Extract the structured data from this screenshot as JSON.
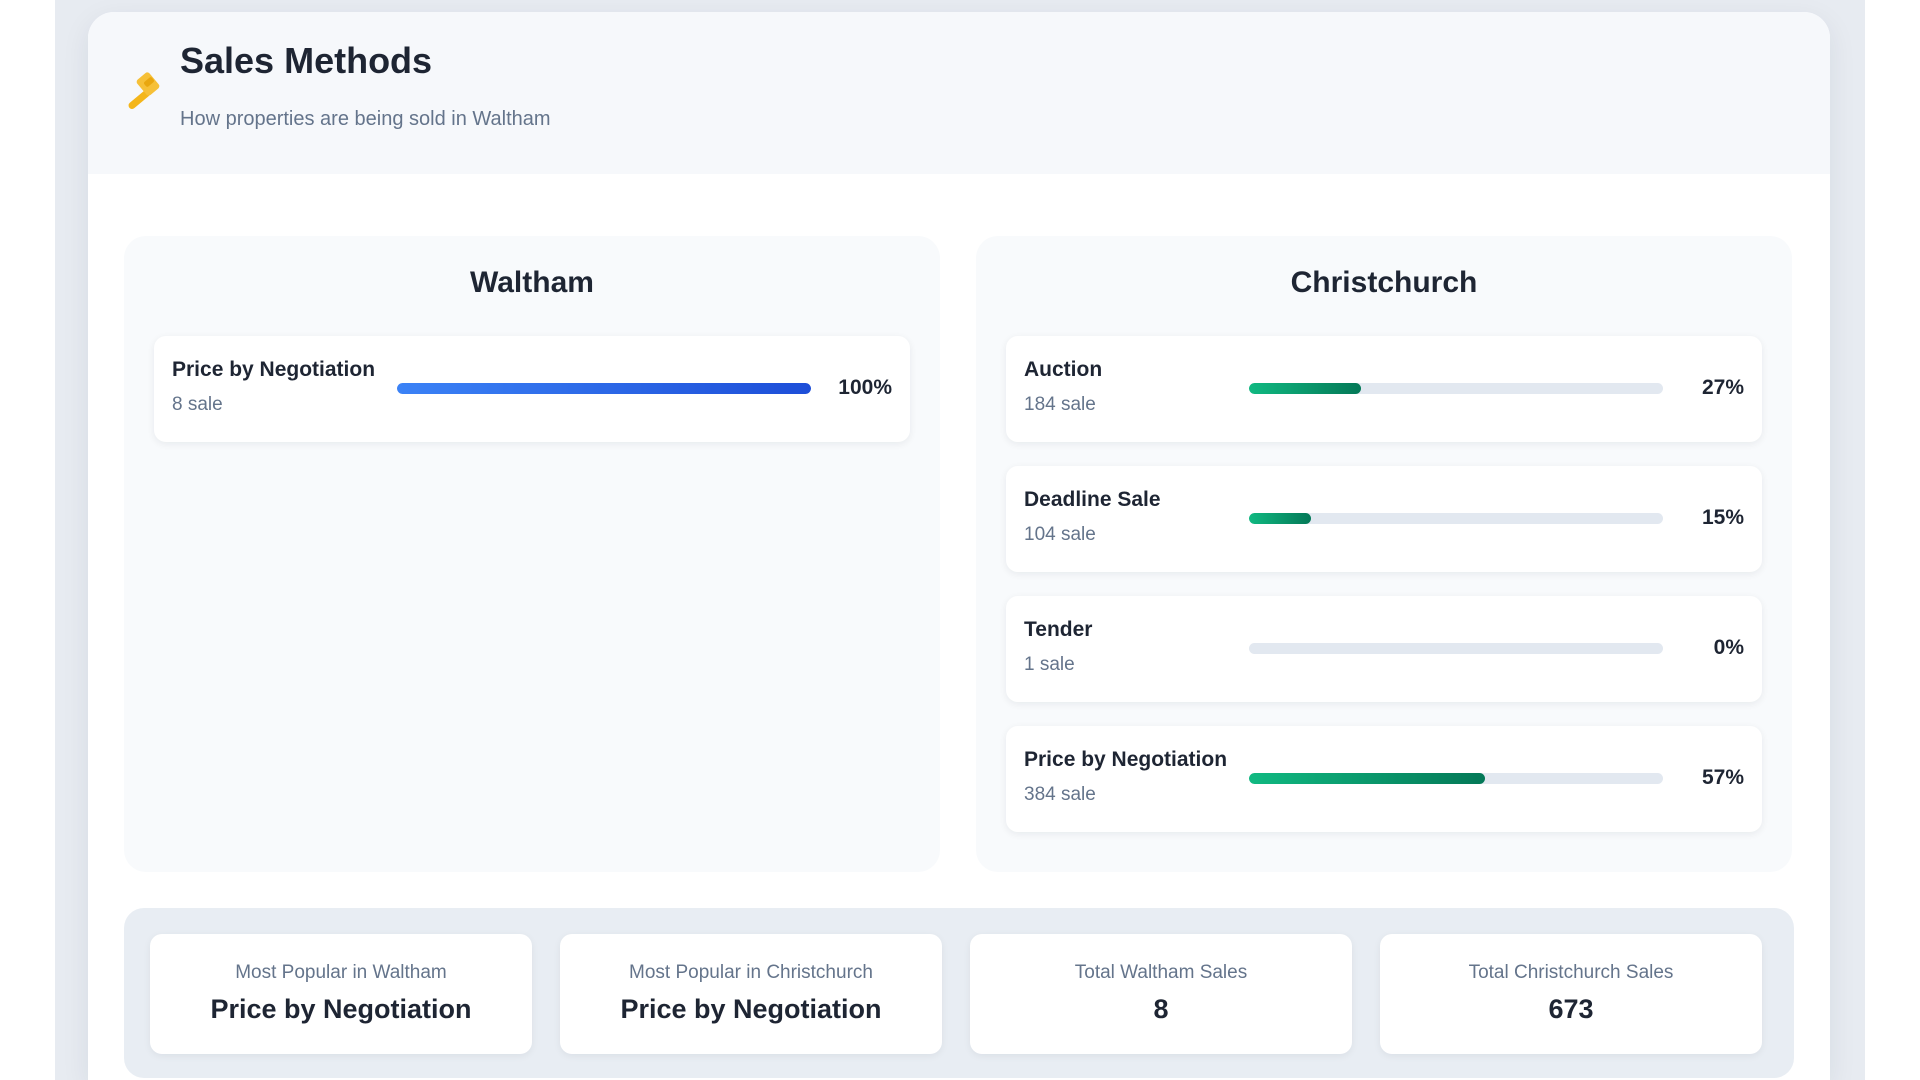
{
  "header": {
    "title": "Sales Methods",
    "subtitle": "How properties are being sold in Waltham",
    "icon": "hammer-icon",
    "icon_color": "#f4b61a"
  },
  "colors": {
    "waltham_bar": "#2563eb",
    "christchurch_bar": "#059669",
    "track": "#e2e8f0"
  },
  "panels": {
    "waltham": {
      "title": "Waltham",
      "methods": [
        {
          "name": "Price by Negotiation",
          "count": "8 sale",
          "pct_label": "100%",
          "pct": 100
        }
      ]
    },
    "christchurch": {
      "title": "Christchurch",
      "methods": [
        {
          "name": "Auction",
          "count": "184 sale",
          "pct_label": "27%",
          "pct": 27
        },
        {
          "name": "Deadline Sale",
          "count": "104 sale",
          "pct_label": "15%",
          "pct": 15
        },
        {
          "name": "Tender",
          "count": "1 sale",
          "pct_label": "0%",
          "pct": 0
        },
        {
          "name": "Price by Negotiation",
          "count": "384 sale",
          "pct_label": "57%",
          "pct": 57
        }
      ]
    }
  },
  "stats": [
    {
      "label": "Most Popular in Waltham",
      "value": "Price by Negotiation"
    },
    {
      "label": "Most Popular in Christchurch",
      "value": "Price by Negotiation"
    },
    {
      "label": "Total Waltham Sales",
      "value": "8"
    },
    {
      "label": "Total Christchurch Sales",
      "value": "673"
    }
  ]
}
